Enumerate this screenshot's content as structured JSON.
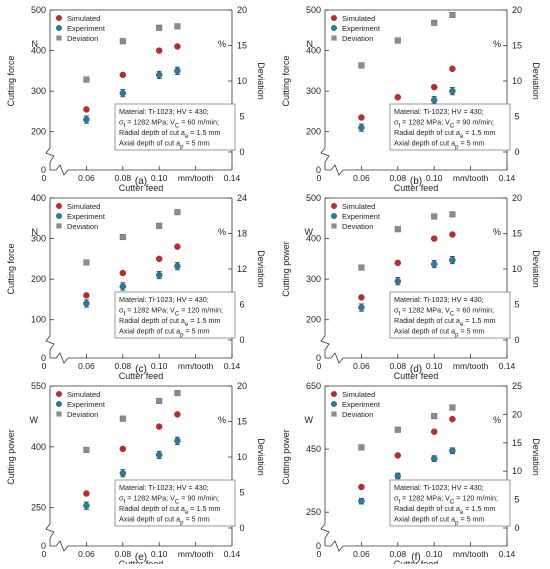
{
  "chart_data": [
    {
      "type": "scatter",
      "panel_label": "(a)",
      "xlabel": "Cutter feed",
      "x_unit_label": "mm/tooth",
      "ylabel": "Cutting force",
      "y_unit": "N",
      "y2label": "Deviation",
      "y2_unit": "%",
      "x_ticks": [
        "0",
        "0.06",
        "0.08",
        "0.10",
        "",
        "0.14"
      ],
      "xlim": [
        0.04,
        0.14
      ],
      "ylim": [
        150,
        500
      ],
      "y_ticks": [
        "200",
        "300",
        "400",
        "500"
      ],
      "y_tick_values": [
        200,
        300,
        400,
        500
      ],
      "y_zero_label": "0",
      "y2lim": [
        0,
        20
      ],
      "y2_ticks": [
        "0",
        "5",
        "10",
        "15",
        "20"
      ],
      "y2_tick_values": [
        0,
        5,
        10,
        15,
        20
      ],
      "x": [
        0.06,
        0.08,
        0.1,
        0.11
      ],
      "series": [
        {
          "name": "Simulated",
          "values": [
            255,
            340,
            400,
            410
          ],
          "color": "#c62828",
          "axis": "left"
        },
        {
          "name": "Experiment",
          "values": [
            230,
            295,
            340,
            350
          ],
          "errors": [
            9,
            9,
            9,
            9
          ],
          "color": "#1e7fa8",
          "axis": "left"
        },
        {
          "name": "Deviation",
          "values": [
            10.2,
            15.6,
            17.5,
            17.7
          ],
          "color": "#8c8c8c",
          "axis": "right"
        }
      ],
      "legend_position": "top-left",
      "annotation": [
        "Material: Ti-1023; HV = 430;",
        "σ_f = 1282 MPa; V_C = 60 m/min;",
        "Radial depth of cut a_e = 1.5 mm",
        "Axial depth of cut a_p = 5 mm"
      ],
      "grid": false
    },
    {
      "type": "scatter",
      "panel_label": "(b)",
      "xlabel": "Cutter feed",
      "x_unit_label": "mm/tooth",
      "ylabel": "Cutting force",
      "y_unit": "N",
      "y2label": "Deviation",
      "y2_unit": "%",
      "x_ticks": [
        "0",
        "0.06",
        "0.08",
        "0.10",
        "",
        "0.14"
      ],
      "xlim": [
        0.04,
        0.14
      ],
      "ylim": [
        150,
        500
      ],
      "y_ticks": [
        "200",
        "300",
        "400",
        "500"
      ],
      "y_tick_values": [
        200,
        300,
        400,
        500
      ],
      "y_zero_label": "0",
      "y2lim": [
        0,
        20
      ],
      "y2_ticks": [
        "0",
        "5",
        "10",
        "15",
        "20"
      ],
      "y2_tick_values": [
        0,
        5,
        10,
        15,
        20
      ],
      "x": [
        0.06,
        0.08,
        0.1,
        0.11
      ],
      "series": [
        {
          "name": "Simulated",
          "values": [
            235,
            285,
            310,
            355
          ],
          "color": "#c62828",
          "axis": "left"
        },
        {
          "name": "Experiment",
          "values": [
            210,
            250,
            278,
            300
          ],
          "errors": [
            9,
            9,
            9,
            9
          ],
          "color": "#1e7fa8",
          "axis": "left"
        },
        {
          "name": "Deviation",
          "values": [
            12.2,
            15.7,
            18.2,
            19.3
          ],
          "color": "#8c8c8c",
          "axis": "right"
        }
      ],
      "legend_position": "top-left",
      "annotation": [
        "Material: Ti-1023; HV = 430;",
        "σ_f = 1282 MPa; V_C = 90 m/min;",
        "Radial depth of cut a_e = 1.5 mm",
        "Axial depth of cut a_p = 5 mm"
      ],
      "grid": false
    },
    {
      "type": "scatter",
      "panel_label": "(c)",
      "xlabel": "Cutter feed",
      "x_unit_label": "mm/tooth",
      "ylabel": "Cutting force",
      "y_unit": "N",
      "y2label": "Deviation",
      "y2_unit": "%",
      "x_ticks": [
        "0",
        "0.06",
        "0.08",
        "0.10",
        "",
        "0.14"
      ],
      "xlim": [
        0.04,
        0.14
      ],
      "ylim": [
        50,
        400
      ],
      "y_ticks": [
        "100",
        "200",
        "300",
        "400"
      ],
      "y_tick_values": [
        100,
        200,
        300,
        400
      ],
      "y_zero_label": "0",
      "y2lim": [
        0,
        24
      ],
      "y2_ticks": [
        "0",
        "6",
        "12",
        "18",
        "24"
      ],
      "y2_tick_values": [
        0,
        6,
        12,
        18,
        24
      ],
      "x": [
        0.06,
        0.08,
        0.1,
        0.11
      ],
      "series": [
        {
          "name": "Simulated",
          "values": [
            160,
            215,
            250,
            280
          ],
          "color": "#c62828",
          "axis": "left"
        },
        {
          "name": "Experiment",
          "values": [
            140,
            182,
            210,
            232
          ],
          "errors": [
            9,
            9,
            9,
            9
          ],
          "color": "#1e7fa8",
          "axis": "left"
        },
        {
          "name": "Deviation",
          "values": [
            13.1,
            17.4,
            19.3,
            21.6
          ],
          "color": "#8c8c8c",
          "axis": "right"
        }
      ],
      "legend_position": "top-left",
      "annotation": [
        "Material: Ti-1023; HV = 430;",
        "σ_f = 1282 MPa; V_C = 120 m/min;",
        "Radial depth of cut a_e = 1.5 mm",
        "Axial depth of cut a_p = 5 mm"
      ],
      "grid": false
    },
    {
      "type": "scatter",
      "panel_label": "(d)",
      "xlabel": "Cutter feed",
      "x_unit_label": "mm/tooth",
      "ylabel": "Cutting power",
      "y_unit": "W",
      "y2label": "Deviation",
      "y2_unit": "%",
      "x_ticks": [
        "0",
        "0.06",
        "0.08",
        "0.10",
        "",
        "0.14"
      ],
      "xlim": [
        0.04,
        0.14
      ],
      "ylim": [
        150,
        500
      ],
      "y_ticks": [
        "200",
        "300",
        "400",
        "500"
      ],
      "y_tick_values": [
        200,
        300,
        400,
        500
      ],
      "y_zero_label": "0",
      "y2lim": [
        0,
        20
      ],
      "y2_ticks": [
        "0",
        "5",
        "10",
        "15",
        "20"
      ],
      "y2_tick_values": [
        0,
        5,
        10,
        15,
        20
      ],
      "x": [
        0.06,
        0.08,
        0.1,
        0.11
      ],
      "series": [
        {
          "name": "Simulated",
          "values": [
            255,
            340,
            400,
            410
          ],
          "color": "#c62828",
          "axis": "left"
        },
        {
          "name": "Experiment",
          "values": [
            230,
            295,
            337,
            347
          ],
          "errors": [
            9,
            9,
            9,
            9
          ],
          "color": "#1e7fa8",
          "axis": "left"
        },
        {
          "name": "Deviation",
          "values": [
            10.2,
            15.6,
            17.4,
            17.7
          ],
          "color": "#8c8c8c",
          "axis": "right"
        }
      ],
      "legend_position": "top-left",
      "annotation": [
        "Material: Ti-1023; HV = 430;",
        "σ_f = 1282 MPa; V_C = 60 m/min;",
        "Radial depth of cut a_e = 1.5 mm",
        "Axial depth of cut a_p = 5 mm"
      ],
      "grid": false
    },
    {
      "type": "scatter",
      "panel_label": "(e)",
      "xlabel": "Cutter feed",
      "x_unit_label": "mm/tooth",
      "ylabel": "Cutting power",
      "y_unit": "W",
      "y2label": "Deviation",
      "y2_unit": "%",
      "x_ticks": [
        "0",
        "0.06",
        "0.08",
        "0.10",
        "",
        "0.14"
      ],
      "xlim": [
        0.04,
        0.14
      ],
      "ylim": [
        200,
        550
      ],
      "y_ticks": [
        "250",
        "400",
        "550"
      ],
      "y_tick_values": [
        250,
        400,
        550
      ],
      "y_zero_label": "0",
      "y2lim": [
        0,
        20
      ],
      "y2_ticks": [
        "0",
        "5",
        "10",
        "15",
        "20"
      ],
      "y2_tick_values": [
        0,
        5,
        10,
        15,
        20
      ],
      "x": [
        0.06,
        0.08,
        0.1,
        0.11
      ],
      "series": [
        {
          "name": "Simulated",
          "values": [
            285,
            395,
            450,
            480
          ],
          "color": "#c62828",
          "axis": "left"
        },
        {
          "name": "Experiment",
          "values": [
            255,
            335,
            380,
            415
          ],
          "errors": [
            9,
            9,
            9,
            9
          ],
          "color": "#1e7fa8",
          "axis": "left"
        },
        {
          "name": "Deviation",
          "values": [
            11.0,
            15.4,
            17.9,
            19.0
          ],
          "color": "#8c8c8c",
          "axis": "right"
        }
      ],
      "legend_position": "top-left",
      "annotation": [
        "Material: Ti-1023; HV = 430;",
        "σ_f = 1282 MPa; V_C = 90 m/min;",
        "Radial depth of cut a_e = 1.5 mm",
        "Axial depth of cut a_p = 5 mm"
      ],
      "grid": false
    },
    {
      "type": "scatter",
      "panel_label": "(f)",
      "xlabel": "Cutter feed",
      "x_unit_label": "mm/tooth",
      "ylabel": "Cutting power",
      "y_unit": "W",
      "y2label": "Deviation",
      "y2_unit": "%",
      "x_ticks": [
        "0",
        "0.06",
        "0.08",
        "0.10",
        "",
        "0.14"
      ],
      "xlim": [
        0.04,
        0.14
      ],
      "ylim": [
        200,
        650
      ],
      "y_ticks": [
        "250",
        "450",
        "650"
      ],
      "y_tick_values": [
        250,
        450,
        650
      ],
      "y_zero_label": "0",
      "y2lim": [
        0,
        25
      ],
      "y2_ticks": [
        "0",
        "5",
        "10",
        "15",
        "20",
        "25"
      ],
      "y2_tick_values": [
        0,
        5,
        10,
        15,
        20,
        25
      ],
      "x": [
        0.06,
        0.08,
        0.1,
        0.11
      ],
      "series": [
        {
          "name": "Simulated",
          "values": [
            330,
            430,
            505,
            545
          ],
          "color": "#c62828",
          "axis": "left"
        },
        {
          "name": "Experiment",
          "values": [
            285,
            365,
            420,
            445
          ],
          "errors": [
            9,
            9,
            9,
            9
          ],
          "color": "#1e7fa8",
          "axis": "left"
        },
        {
          "name": "Deviation",
          "values": [
            14.2,
            17.3,
            19.7,
            21.2
          ],
          "color": "#8c8c8c",
          "axis": "right"
        }
      ],
      "legend_position": "top-left",
      "annotation": [
        "Material: Ti-1023; HV = 430;",
        "σ_f = 1282 MPa; V_C = 120 m/min;",
        "Radial depth of cut a_e = 1.5 mm",
        "Axial depth of cut a_p = 5 mm"
      ],
      "grid": false
    }
  ]
}
